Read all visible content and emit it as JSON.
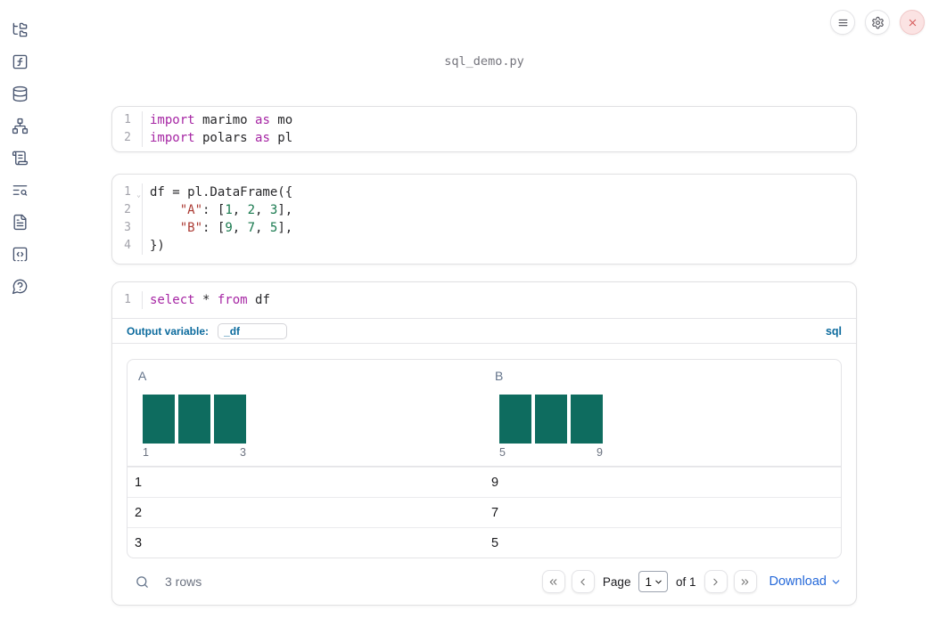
{
  "title": "sql_demo.py",
  "colors": {
    "keyword": "#a626a4",
    "string": "#ab3a33",
    "number": "#18794e",
    "histogram_bar": "#0e6c5f",
    "accent_blue": "#0b6a9d",
    "link_blue": "#2468d9",
    "close_red": "#d65c5c"
  },
  "topbar": {
    "buttons": [
      {
        "name": "menu"
      },
      {
        "name": "settings"
      },
      {
        "name": "close"
      }
    ]
  },
  "sidebar": {
    "items": [
      {
        "name": "file-explorer"
      },
      {
        "name": "functions"
      },
      {
        "name": "data-sources"
      },
      {
        "name": "dependency-graph"
      },
      {
        "name": "scratchpad"
      },
      {
        "name": "logs"
      },
      {
        "name": "documentation"
      },
      {
        "name": "snippets"
      },
      {
        "name": "help"
      }
    ]
  },
  "cells": [
    {
      "type": "python",
      "lines": [
        {
          "num": "1",
          "tokens": [
            {
              "c": "kw",
              "t": "import"
            },
            {
              "c": "pl",
              "t": " marimo "
            },
            {
              "c": "kw",
              "t": "as"
            },
            {
              "c": "pl",
              "t": " mo"
            }
          ]
        },
        {
          "num": "2",
          "tokens": [
            {
              "c": "kw",
              "t": "import"
            },
            {
              "c": "pl",
              "t": " polars "
            },
            {
              "c": "kw",
              "t": "as"
            },
            {
              "c": "pl",
              "t": " pl"
            }
          ]
        }
      ]
    },
    {
      "type": "python",
      "lines": [
        {
          "num": "1",
          "fold": true,
          "tokens": [
            {
              "c": "pl",
              "t": "df = pl.DataFrame({"
            }
          ]
        },
        {
          "num": "2",
          "tokens": [
            {
              "c": "pl",
              "t": "    "
            },
            {
              "c": "str",
              "t": "\"A\""
            },
            {
              "c": "pl",
              "t": ": ["
            },
            {
              "c": "num",
              "t": "1"
            },
            {
              "c": "pl",
              "t": ", "
            },
            {
              "c": "num",
              "t": "2"
            },
            {
              "c": "pl",
              "t": ", "
            },
            {
              "c": "num",
              "t": "3"
            },
            {
              "c": "pl",
              "t": "],"
            }
          ]
        },
        {
          "num": "3",
          "tokens": [
            {
              "c": "pl",
              "t": "    "
            },
            {
              "c": "str",
              "t": "\"B\""
            },
            {
              "c": "pl",
              "t": ": ["
            },
            {
              "c": "num",
              "t": "9"
            },
            {
              "c": "pl",
              "t": ", "
            },
            {
              "c": "num",
              "t": "7"
            },
            {
              "c": "pl",
              "t": ", "
            },
            {
              "c": "num",
              "t": "5"
            },
            {
              "c": "pl",
              "t": "],"
            }
          ]
        },
        {
          "num": "4",
          "tokens": [
            {
              "c": "pl",
              "t": "})"
            }
          ]
        }
      ]
    },
    {
      "type": "sql",
      "lines": [
        {
          "num": "1",
          "tokens": [
            {
              "c": "kw",
              "t": "select"
            },
            {
              "c": "pl",
              "t": " * "
            },
            {
              "c": "kw",
              "t": "from"
            },
            {
              "c": "pl",
              "t": " df"
            }
          ]
        }
      ],
      "output_variable_label": "Output variable:",
      "output_variable_value": "_df",
      "language_badge": "sql"
    }
  ],
  "table": {
    "columns": [
      {
        "name": "A",
        "histogram": {
          "bar_count": 3,
          "bars_equal_height": true,
          "min_label": "1",
          "max_label": "3"
        }
      },
      {
        "name": "B",
        "histogram": {
          "bar_count": 3,
          "bars_equal_height": true,
          "min_label": "5",
          "max_label": "9"
        }
      }
    ],
    "rows": [
      [
        "1",
        "9"
      ],
      [
        "2",
        "7"
      ],
      [
        "3",
        "5"
      ]
    ],
    "footer": {
      "row_count": "3 rows",
      "page_label": "Page",
      "page_value": "1",
      "of_label": "of 1",
      "download_label": "Download"
    }
  }
}
